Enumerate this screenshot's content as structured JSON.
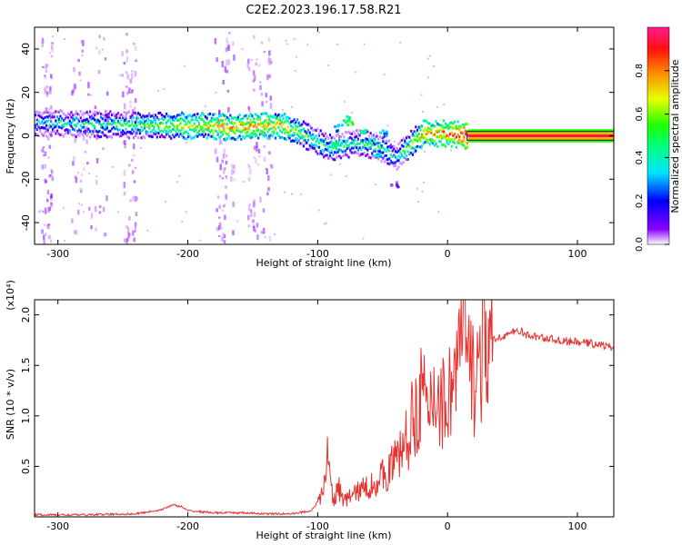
{
  "title": "C2E2.2023.196.17.58.R21",
  "chart_data": [
    {
      "type": "heatmap",
      "xlabel": "Height of straight line (km)",
      "ylabel": "Frequency (Hz)",
      "xlim": [
        -318,
        128
      ],
      "ylim": [
        -50,
        50
      ],
      "x_ticks": [
        -300,
        -200,
        -100,
        0,
        100
      ],
      "y_ticks": [
        -40,
        -20,
        0,
        20,
        40
      ],
      "colorbar": {
        "label": "Normalized spectral amplitude",
        "range": [
          0,
          1
        ],
        "ticks": [
          "0.0",
          "0.2",
          "0.4",
          "0.6",
          "0.8"
        ]
      },
      "ridge": [
        {
          "x": -318,
          "freq": 6,
          "amp": 0.35
        },
        {
          "x": -250,
          "freq": 5,
          "amp": 0.45
        },
        {
          "x": -200,
          "freq": 4.5,
          "amp": 0.65
        },
        {
          "x": -160,
          "freq": 4,
          "amp": 0.75
        },
        {
          "x": -130,
          "freq": 5,
          "amp": 0.7
        },
        {
          "x": -110,
          "freq": 0,
          "amp": 0.5
        },
        {
          "x": -90,
          "freq": -6,
          "amp": 0.45
        },
        {
          "x": -70,
          "freq": -3,
          "amp": 0.4
        },
        {
          "x": -50,
          "freq": -6,
          "amp": 0.45
        },
        {
          "x": -40,
          "freq": -10,
          "amp": 0.35
        },
        {
          "x": -20,
          "freq": 1,
          "amp": 0.75
        },
        {
          "x": 0,
          "freq": 1,
          "amp": 0.8
        },
        {
          "x": 15,
          "freq": 0,
          "amp": 0.95
        },
        {
          "x": 128,
          "freq": 0,
          "amp": 0.95
        }
      ]
    },
    {
      "type": "line",
      "xlabel": "Height of straight line (km)",
      "ylabel": "SNR (10 * v/v)",
      "y_multiplier": "(x10⁴)",
      "xlim": [
        -318,
        128
      ],
      "ylim": [
        0,
        2.15
      ],
      "x_ticks": [
        -300,
        -200,
        -100,
        0,
        100
      ],
      "y_ticks": [
        0.5,
        1.0,
        1.5,
        2.0
      ],
      "color": "#e8322f",
      "series": [
        {
          "x": [
            -318,
            -280,
            -240,
            -220,
            -212,
            -205,
            -200,
            -180,
            -160,
            -140,
            -120,
            -105,
            -97,
            -92,
            -88,
            -84,
            -80,
            -75,
            -70,
            -60,
            -50,
            -40,
            -30,
            -25,
            -20,
            -15,
            -10,
            -5,
            0,
            5,
            10,
            12,
            15,
            20,
            25,
            30,
            40,
            50,
            55,
            60,
            70,
            80,
            90,
            100,
            110,
            120,
            128
          ],
          "y": [
            0.02,
            0.02,
            0.03,
            0.07,
            0.12,
            0.1,
            0.06,
            0.04,
            0.04,
            0.03,
            0.03,
            0.06,
            0.2,
            0.6,
            0.15,
            0.3,
            0.15,
            0.2,
            0.25,
            0.3,
            0.4,
            0.55,
            0.8,
            1.05,
            1.25,
            0.95,
            1.3,
            1.1,
            1.2,
            1.4,
            1.6,
            2.1,
            1.5,
            1.4,
            1.55,
            1.7,
            1.78,
            1.82,
            1.85,
            1.8,
            1.78,
            1.76,
            1.74,
            1.73,
            1.72,
            1.7,
            1.67
          ]
        }
      ]
    }
  ]
}
